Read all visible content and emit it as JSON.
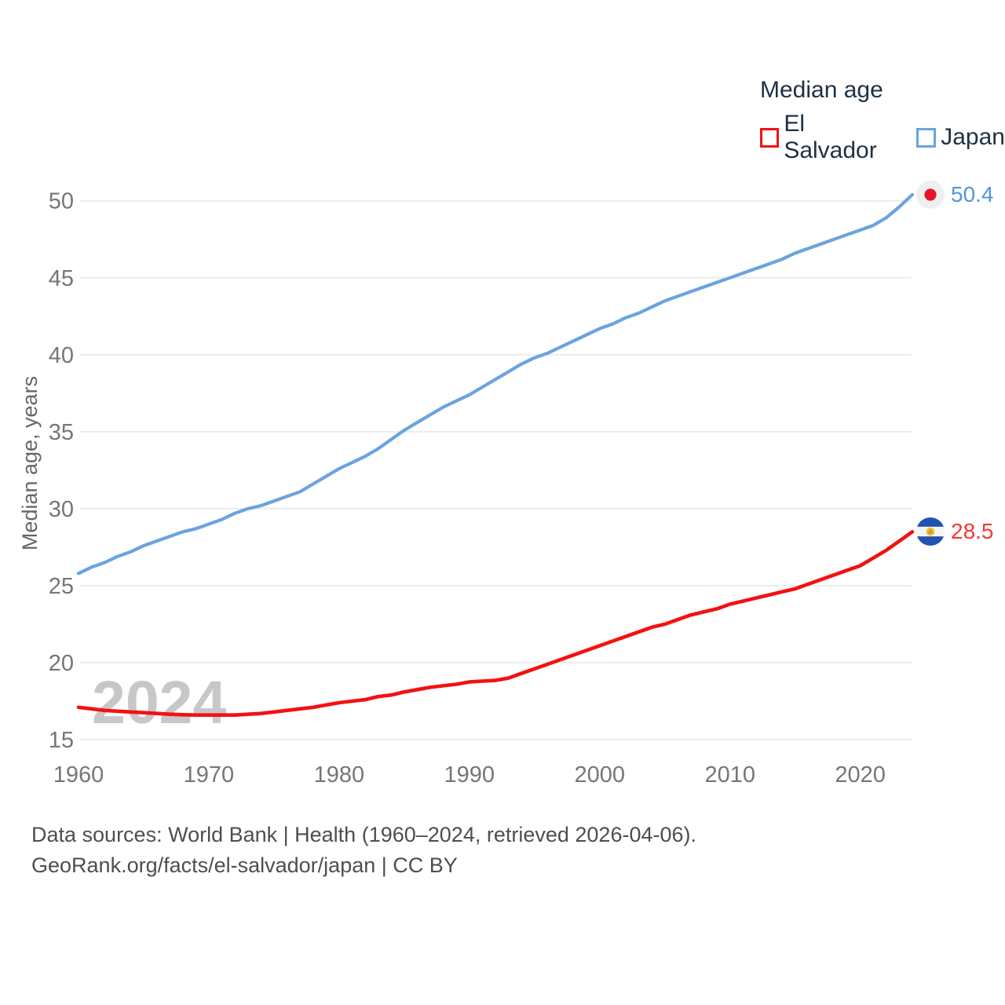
{
  "legend": {
    "title": "Median age"
  },
  "watermark": "2024",
  "source": {
    "line1": "Data sources: World Bank | Health (1960–2024, retrieved 2026-04-06).",
    "line2": "GeoRank.org/facts/el-salvador/japan | CC BY"
  },
  "chart_data": {
    "type": "line",
    "title": "Median age",
    "xlabel": "",
    "ylabel": "Median age, years",
    "xlim": [
      1960,
      2024
    ],
    "ylim": [
      15,
      52
    ],
    "grid": "horizontal",
    "legend_position": "top-right",
    "xticks": [
      1960,
      1970,
      1980,
      1990,
      2000,
      2010,
      2020
    ],
    "yticks": [
      15,
      20,
      25,
      30,
      35,
      40,
      45,
      50
    ],
    "x": [
      1960,
      1961,
      1962,
      1963,
      1964,
      1965,
      1966,
      1967,
      1968,
      1969,
      1970,
      1971,
      1972,
      1973,
      1974,
      1975,
      1976,
      1977,
      1978,
      1979,
      1980,
      1981,
      1982,
      1983,
      1984,
      1985,
      1986,
      1987,
      1988,
      1989,
      1990,
      1991,
      1992,
      1993,
      1994,
      1995,
      1996,
      1997,
      1998,
      1999,
      2000,
      2001,
      2002,
      2003,
      2004,
      2005,
      2006,
      2007,
      2008,
      2009,
      2010,
      2011,
      2012,
      2013,
      2014,
      2015,
      2016,
      2017,
      2018,
      2019,
      2020,
      2021,
      2022,
      2023,
      2024
    ],
    "series": [
      {
        "name": "El Salvador",
        "color": "#f31111",
        "label_color": "#f13a30",
        "end_label": "28.5",
        "flag": "el-salvador",
        "values": [
          17.1,
          17.0,
          16.9,
          16.85,
          16.8,
          16.75,
          16.7,
          16.65,
          16.62,
          16.6,
          16.6,
          16.6,
          16.6,
          16.65,
          16.7,
          16.8,
          16.9,
          17.0,
          17.1,
          17.25,
          17.4,
          17.5,
          17.6,
          17.8,
          17.9,
          18.1,
          18.25,
          18.4,
          18.5,
          18.6,
          18.75,
          18.8,
          18.85,
          19.0,
          19.3,
          19.6,
          19.9,
          20.2,
          20.5,
          20.8,
          21.1,
          21.4,
          21.7,
          22.0,
          22.3,
          22.5,
          22.8,
          23.1,
          23.3,
          23.5,
          23.8,
          24.0,
          24.2,
          24.4,
          24.6,
          24.8,
          25.1,
          25.4,
          25.7,
          26.0,
          26.3,
          26.8,
          27.3,
          27.9,
          28.5
        ]
      },
      {
        "name": "Japan",
        "color": "#6aa3e0",
        "label_color": "#4f97d8",
        "end_label": "50.4",
        "flag": "japan",
        "values": [
          25.8,
          26.2,
          26.5,
          26.9,
          27.2,
          27.6,
          27.9,
          28.2,
          28.5,
          28.7,
          29.0,
          29.3,
          29.7,
          30.0,
          30.2,
          30.5,
          30.8,
          31.1,
          31.6,
          32.1,
          32.6,
          33.0,
          33.4,
          33.9,
          34.5,
          35.1,
          35.6,
          36.1,
          36.6,
          37.0,
          37.4,
          37.9,
          38.4,
          38.9,
          39.4,
          39.8,
          40.1,
          40.5,
          40.9,
          41.3,
          41.7,
          42.0,
          42.4,
          42.7,
          43.1,
          43.5,
          43.8,
          44.1,
          44.4,
          44.7,
          45.0,
          45.3,
          45.6,
          45.9,
          46.2,
          46.6,
          46.9,
          47.2,
          47.5,
          47.8,
          48.1,
          48.4,
          48.9,
          49.6,
          50.4
        ]
      }
    ],
    "colors": {
      "tick_text": "#767676",
      "axis_title": "#666666",
      "gridline": "#ececec",
      "watermark": "#c7c7c7",
      "legend_text": "#1f3044",
      "source_text": "#4e4e4e"
    }
  }
}
